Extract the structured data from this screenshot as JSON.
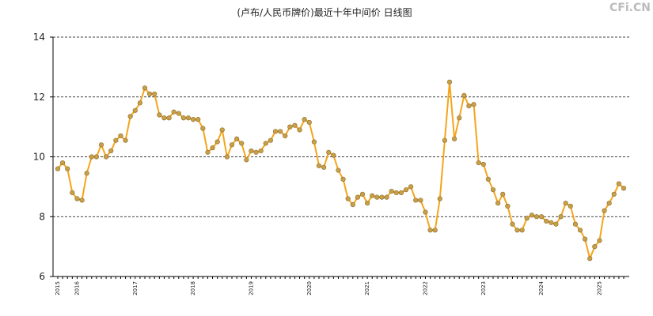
{
  "chart_data": {
    "type": "line",
    "title": "(卢布/人民币牌价)最近十年中间价 日线图",
    "watermark": "CFi.CN",
    "categories": [
      "2015",
      null,
      null,
      null,
      "2016",
      null,
      null,
      null,
      null,
      null,
      null,
      null,
      null,
      null,
      null,
      null,
      "2017",
      null,
      null,
      null,
      null,
      null,
      null,
      null,
      null,
      null,
      null,
      null,
      "2018",
      null,
      null,
      null,
      null,
      null,
      null,
      null,
      null,
      null,
      null,
      null,
      "2019",
      null,
      null,
      null,
      null,
      null,
      null,
      null,
      null,
      null,
      null,
      null,
      "2020",
      null,
      null,
      null,
      null,
      null,
      null,
      null,
      null,
      null,
      null,
      null,
      "2021",
      null,
      null,
      null,
      null,
      null,
      null,
      null,
      null,
      null,
      null,
      null,
      "2022",
      null,
      null,
      null,
      null,
      null,
      null,
      null,
      null,
      null,
      null,
      null,
      "2023",
      null,
      null,
      null,
      null,
      null,
      null,
      null,
      null,
      null,
      null,
      null,
      "2024",
      null,
      null,
      null,
      null,
      null,
      null,
      null,
      null,
      null,
      null,
      null,
      "2025",
      null,
      null,
      null,
      null,
      null
    ],
    "values": [
      9.6,
      9.8,
      9.6,
      8.8,
      8.6,
      8.55,
      9.45,
      10.0,
      10.0,
      10.4,
      10.0,
      10.2,
      10.55,
      10.7,
      10.55,
      11.35,
      11.55,
      11.8,
      12.3,
      12.1,
      12.1,
      11.4,
      11.3,
      11.3,
      11.5,
      11.45,
      11.3,
      11.3,
      11.25,
      11.25,
      10.95,
      10.15,
      10.3,
      10.5,
      10.9,
      10.0,
      10.4,
      10.6,
      10.45,
      9.9,
      10.2,
      10.15,
      10.2,
      10.45,
      10.55,
      10.85,
      10.85,
      10.7,
      11.0,
      11.05,
      10.9,
      11.25,
      11.15,
      10.5,
      9.7,
      9.65,
      10.15,
      10.05,
      9.55,
      9.25,
      8.6,
      8.4,
      8.65,
      8.75,
      8.45,
      8.7,
      8.65,
      8.65,
      8.65,
      8.85,
      8.8,
      8.8,
      8.9,
      9.0,
      8.55,
      8.55,
      8.15,
      7.55,
      7.55,
      8.6,
      10.55,
      12.5,
      10.6,
      11.3,
      12.05,
      11.7,
      11.75,
      9.8,
      9.75,
      9.25,
      8.9,
      8.45,
      8.75,
      8.35,
      7.75,
      7.55,
      7.55,
      7.95,
      8.05,
      8.0,
      8.0,
      7.85,
      7.8,
      7.75,
      8.0,
      8.45,
      8.35,
      7.75,
      7.55,
      7.25,
      6.6,
      7.0,
      7.2,
      8.2,
      8.45,
      8.75,
      9.1,
      8.95
    ],
    "color": "#f5a51c",
    "marker_color": "#c9a047",
    "ylim": [
      6,
      14
    ],
    "yticks": [
      6,
      8,
      10,
      12,
      14
    ],
    "grid": true
  }
}
